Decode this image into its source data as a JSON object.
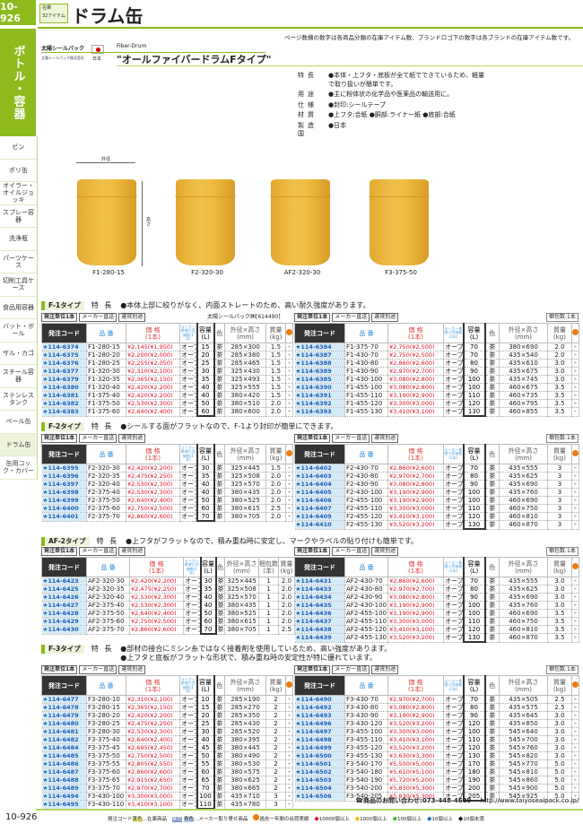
{
  "header": {
    "page_number": "10-926",
    "stock_label": "在庫",
    "stock_count": "32アイテム",
    "title": "ドラム缶",
    "note": "ページ数横の数字は各商品分類の在庫アイテム数、ブランドロゴ下の数字は各ブランドの在庫アイテム数です。"
  },
  "sidebar": {
    "category": "ボトル・容器",
    "items": [
      "ビン",
      "ポリ缶",
      "オイラー・オイルジョッキ",
      "スプレー容器",
      "洗浄瓶",
      "パーツケース",
      "切削工具ケース",
      "食品用容器",
      "バット・ボール",
      "ザル・カゴ",
      "スチール容器",
      "ステンレスタンク",
      "ペール缶",
      "ドラム缶",
      "缶用コック・カバー"
    ],
    "active": "ドラム缶"
  },
  "brand": {
    "name": "太陽シールパック",
    "company": "太陽シールパック株式会社",
    "country": "日本",
    "en_name": "Fiber-Drum",
    "product_name": "\"オールファイバードラムFタイプ\""
  },
  "spec": [
    {
      "k": "特長",
      "v": "●本体・上フタ・底板が全て紙でできているため、軽量で取り扱いが簡単です。"
    },
    {
      "k": "用途",
      "v": "●主に粉体状の化学品や医薬品の輸送用に。"
    },
    {
      "k": "仕様",
      "v": "●封印:シールテープ"
    },
    {
      "k": "材質",
      "v": "●上フタ:合紙 ●胴部:ライナー紙 ●底部:合紙"
    },
    {
      "k": "製造国",
      "v": "●日本"
    }
  ],
  "images": {
    "labels": [
      "F1-280-15",
      "F2-320-30",
      "AF2-320-30",
      "F3-375-50"
    ],
    "dim_width": "外径",
    "dim_height": "高さ"
  },
  "table_headers": {
    "code": "発注コード",
    "part": "品 番",
    "price": "価 格\n(1本)",
    "maker": "メーカー希望小売価格(1本)",
    "capacity": "容量\n(L)",
    "color": "色",
    "size": "外径×高さ\n(mm)",
    "pack": "梱包数\n(本)",
    "weight": "質量\n(kg)"
  },
  "unit_bar": {
    "unit": "発注単位1本",
    "direct": "メーカー直送",
    "shipping": "運賃別途"
  },
  "sections": [
    {
      "tag": "F-1タイプ",
      "label": "特 長",
      "features": [
        "●本体上部に絞りがなく、内面ストレートのため、高い耐久強度があります。"
      ],
      "left_note": "太陽シールパック㈱[614490]",
      "right_note": "梱包数:1本",
      "has_pack": false,
      "left": [
        [
          "★114-6374",
          "F1-280-15",
          "¥2,145(¥1,950)",
          "オープン",
          "15",
          "茶",
          "285×300",
          "1.5",
          "-"
        ],
        [
          "★114-6375",
          "F1-280-20",
          "¥2,200(¥2,000)",
          "オープン",
          "20",
          "茶",
          "285×380",
          "1.5",
          "-"
        ],
        [
          "★114-6376",
          "F1-280-25",
          "¥2,255(¥2,050)",
          "オープン",
          "25",
          "茶",
          "285×465",
          "1.5",
          "-"
        ],
        [
          "★114-6377",
          "F1-320-30",
          "¥2,310(¥2,100)",
          "オープン",
          "30",
          "茶",
          "325×430",
          "1.5",
          "-"
        ],
        [
          "★114-6379",
          "F1-320-35",
          "¥2,365(¥2,150)",
          "オープン",
          "35",
          "茶",
          "325×493",
          "1.5",
          "-"
        ],
        [
          "★114-6380",
          "F1-320-40",
          "¥2,420(¥2,200)",
          "オープン",
          "40",
          "茶",
          "325×555",
          "1.5",
          "-"
        ],
        [
          "★114-6381",
          "F1-375-40",
          "¥2,420(¥2,200)",
          "オープン",
          "40",
          "茶",
          "380×420",
          "1.5",
          "-"
        ],
        [
          "★114-6382",
          "F1-375-50",
          "¥2,530(¥2,300)",
          "オープン",
          "50",
          "茶",
          "380×510",
          "2.0",
          "-"
        ],
        [
          "★114-6383",
          "F1-375-60",
          "¥2,640(¥2,400)",
          "オープン",
          "60",
          "茶",
          "380×600",
          "2.0",
          "-"
        ]
      ],
      "right": [
        [
          "★114-6384",
          "F1-375-70",
          "¥2,750(¥2,500)",
          "オープン",
          "70",
          "茶",
          "380×690",
          "2.0",
          "-"
        ],
        [
          "★114-6387",
          "F1-430-70",
          "¥2,750(¥2,500)",
          "オープン",
          "70",
          "茶",
          "435×540",
          "2.0",
          "-"
        ],
        [
          "★114-6388",
          "F1-430-80",
          "¥2,860(¥2,600)",
          "オープン",
          "80",
          "茶",
          "435×610",
          "3.0",
          "-"
        ],
        [
          "★114-6389",
          "F1-430-90",
          "¥2,970(¥2,700)",
          "オープン",
          "90",
          "茶",
          "435×675",
          "3.0",
          "-"
        ],
        [
          "★114-6385",
          "F1-430-100",
          "¥3,080(¥2,800)",
          "オープン",
          "100",
          "茶",
          "435×745",
          "3.0",
          "-"
        ],
        [
          "★114-6390",
          "F1-455-100",
          "¥3,080(¥2,800)",
          "オープン",
          "100",
          "茶",
          "460×675",
          "3.5",
          "-"
        ],
        [
          "★114-6391",
          "F1-455-110",
          "¥3,190(¥2,900)",
          "オープン",
          "110",
          "茶",
          "460×735",
          "3.5",
          "-"
        ],
        [
          "★114-6392",
          "F1-455-120",
          "¥3,300(¥3,000)",
          "オープン",
          "120",
          "茶",
          "460×795",
          "3.5",
          "-"
        ],
        [
          "★114-6393",
          "F1-455-130",
          "¥3,410(¥3,100)",
          "オープン",
          "130",
          "茶",
          "460×855",
          "3.5",
          "-"
        ]
      ]
    },
    {
      "tag": "F-2タイプ",
      "label": "特 長",
      "features": [
        "●シールする面がフラットなので、F-1より封印が簡単にできます。"
      ],
      "left_note": "",
      "right_note": "梱包数:1本",
      "has_pack": false,
      "left": [
        [
          "★114-6395",
          "F2-320-30",
          "¥2,420(¥2,200)",
          "オープン",
          "30",
          "茶",
          "325×445",
          "1.5",
          "-"
        ],
        [
          "★114-6396",
          "F2-320-35",
          "¥2,475(¥2,250)",
          "オープン",
          "35",
          "茶",
          "325×508",
          "2.0",
          "-"
        ],
        [
          "★114-6397",
          "F2-320-40",
          "¥2,530(¥2,300)",
          "オープン",
          "40",
          "茶",
          "325×570",
          "2.0",
          "-"
        ],
        [
          "★114-6398",
          "F2-375-40",
          "¥2,530(¥2,300)",
          "オープン",
          "40",
          "茶",
          "380×435",
          "2.0",
          "-"
        ],
        [
          "★114-6399",
          "F2-375-50",
          "¥2,640(¥2,400)",
          "オープン",
          "50",
          "茶",
          "380×525",
          "2.0",
          "-"
        ],
        [
          "★114-6400",
          "F2-375-60",
          "¥2,750(¥2,500)",
          "オープン",
          "60",
          "茶",
          "380×615",
          "2.5",
          "-"
        ],
        [
          "★114-6401",
          "F2-375-70",
          "¥2,860(¥2,600)",
          "オープン",
          "70",
          "茶",
          "380×705",
          "2.0",
          "-"
        ]
      ],
      "right": [
        [
          "★114-6402",
          "F2-430-70",
          "¥2,860(¥2,600)",
          "オープン",
          "70",
          "茶",
          "435×555",
          "3",
          "-"
        ],
        [
          "★114-6403",
          "F2-430-80",
          "¥2,970(¥2,700)",
          "オープン",
          "80",
          "茶",
          "435×625",
          "3",
          "-"
        ],
        [
          "★114-6404",
          "F2-430-90",
          "¥3,080(¥2,800)",
          "オープン",
          "90",
          "茶",
          "435×690",
          "3",
          "-"
        ],
        [
          "★114-6405",
          "F2-430-100",
          "¥3,190(¥2,900)",
          "オープン",
          "100",
          "茶",
          "435×760",
          "3",
          "-"
        ],
        [
          "★114-6406",
          "F2-455-100",
          "¥3,190(¥2,900)",
          "オープン",
          "100",
          "茶",
          "460×690",
          "3",
          "-"
        ],
        [
          "★114-6407",
          "F2-455-110",
          "¥3,300(¥3,000)",
          "オープン",
          "110",
          "茶",
          "460×750",
          "3",
          "-"
        ],
        [
          "★114-6409",
          "F2-455-120",
          "¥3,410(¥3,100)",
          "オープン",
          "120",
          "茶",
          "460×810",
          "3",
          "-"
        ],
        [
          "★114-6410",
          "F2-455-130",
          "¥3,520(¥3,200)",
          "オープン",
          "130",
          "茶",
          "460×870",
          "3",
          "-"
        ]
      ]
    },
    {
      "tag": "AF-2タイプ",
      "label": "特 長",
      "features": [
        "●上フタがフラットなので、積み重ね時に安定し、マークやラベルの貼り付けも簡単です。"
      ],
      "left_note": "",
      "right_note": "梱包数:1本",
      "has_pack": true,
      "left": [
        [
          "★114-6423",
          "AF2-320-30",
          "¥2,420(¥2,200)",
          "オープン",
          "30",
          "茶",
          "325×445",
          "1",
          "2.0",
          "-"
        ],
        [
          "★114-6425",
          "AF2-320-35",
          "¥2,475(¥2,250)",
          "オープン",
          "35",
          "茶",
          "325×508",
          "1",
          "2.0",
          "-"
        ],
        [
          "★114-6426",
          "AF2-320-40",
          "¥2,530(¥2,300)",
          "オープン",
          "40",
          "茶",
          "325×570",
          "1",
          "2.0",
          "-"
        ],
        [
          "★114-6427",
          "AF2-375-40",
          "¥2,530(¥2,300)",
          "オープン",
          "40",
          "茶",
          "380×435",
          "1",
          "2.0",
          "-"
        ],
        [
          "★114-6428",
          "AF2-375-50",
          "¥2,640(¥2,400)",
          "オープン",
          "50",
          "茶",
          "380×525",
          "1",
          "2.0",
          "-"
        ],
        [
          "★114-6429",
          "AF2-375-60",
          "¥2,750(¥2,500)",
          "オープン",
          "60",
          "茶",
          "380×615",
          "1",
          "2.0",
          "-"
        ],
        [
          "★114-6430",
          "AF2-375-70",
          "¥2,860(¥2,600)",
          "オープン",
          "70",
          "茶",
          "380×705",
          "1",
          "2.5",
          "-"
        ]
      ],
      "right": [
        [
          "★114-6431",
          "AF2-430-70",
          "¥2,860(¥2,600)",
          "オープン",
          "70",
          "茶",
          "435×555",
          "3.0",
          "-"
        ],
        [
          "★114-6433",
          "AF2-430-80",
          "¥2,970(¥2,700)",
          "オープン",
          "80",
          "茶",
          "435×625",
          "3.0",
          "-"
        ],
        [
          "★114-6434",
          "AF2-430-90",
          "¥3,080(¥2,800)",
          "オープン",
          "90",
          "茶",
          "435×690",
          "3.0",
          "-"
        ],
        [
          "★114-6435",
          "AF2-430-100",
          "¥3,190(¥2,900)",
          "オープン",
          "100",
          "茶",
          "435×760",
          "3.0",
          "-"
        ],
        [
          "★114-6436",
          "AF2-455-100",
          "¥3,190(¥2,900)",
          "オープン",
          "100",
          "茶",
          "460×690",
          "3.5",
          "-"
        ],
        [
          "★114-6437",
          "AF2-455-110",
          "¥3,300(¥3,000)",
          "オープン",
          "110",
          "茶",
          "460×750",
          "3.5",
          "-"
        ],
        [
          "★114-6438",
          "AF2-455-120",
          "¥3,410(¥3,100)",
          "オープン",
          "120",
          "茶",
          "460×810",
          "3.5",
          "-"
        ],
        [
          "★114-6439",
          "AF2-455-130",
          "¥3,520(¥3,200)",
          "オープン",
          "130",
          "茶",
          "460×870",
          "3.5",
          "-"
        ]
      ]
    },
    {
      "tag": "F-3タイプ",
      "label": "特 長",
      "features": [
        "●部材の接合にミシン糸ではなく接着剤を使用しているため、高い強度があります。",
        "●上フタと底板がフラットな形状で、積み重ね時の安定性が特に優れています。"
      ],
      "left_note": "",
      "right_note": "梱包数:1本",
      "has_pack": false,
      "left": [
        [
          "★114-6477",
          "F3-280-10",
          "¥2,310(¥2,100)",
          "オープン",
          "10",
          "茶",
          "285×190",
          "2",
          "-"
        ],
        [
          "★114-6478",
          "F3-280-15",
          "¥2,365(¥2,150)",
          "オープン",
          "15",
          "茶",
          "285×270",
          "2",
          "-"
        ],
        [
          "★114-6479",
          "F3-280-20",
          "¥2,420(¥2,200)",
          "オープン",
          "20",
          "茶",
          "285×350",
          "2",
          "-"
        ],
        [
          "★114-6480",
          "F3-280-25",
          "¥2,475(¥2,250)",
          "オープン",
          "25",
          "茶",
          "285×430",
          "2",
          "-"
        ],
        [
          "★114-6481",
          "F3-280-30",
          "¥2,530(¥2,300)",
          "オープン",
          "30",
          "茶",
          "285×520",
          "2",
          "-"
        ],
        [
          "★114-6482",
          "F3-375-40",
          "¥2,640(¥2,400)",
          "オープン",
          "40",
          "茶",
          "380×395",
          "2",
          "-"
        ],
        [
          "★114-6484",
          "F3-375-45",
          "¥2,695(¥2,450)",
          "オープン",
          "45",
          "茶",
          "380×445",
          "2",
          "-"
        ],
        [
          "★114-6485",
          "F3-375-50",
          "¥2,750(¥2,500)",
          "オープン",
          "50",
          "茶",
          "380×490",
          "2",
          "-"
        ],
        [
          "★114-6486",
          "F3-375-55",
          "¥2,805(¥2,550)",
          "オープン",
          "55",
          "茶",
          "380×530",
          "2",
          "-"
        ],
        [
          "★114-6487",
          "F3-375-60",
          "¥2,860(¥2,600)",
          "オープン",
          "60",
          "茶",
          "380×575",
          "2",
          "-"
        ],
        [
          "★114-6488",
          "F3-375-65",
          "¥2,915(¥2,650)",
          "オープン",
          "65",
          "茶",
          "380×625",
          "2",
          "-"
        ],
        [
          "★114-6489",
          "F3-375-70",
          "¥2,970(¥2,700)",
          "オープン",
          "70",
          "茶",
          "380×665",
          "2",
          "-"
        ],
        [
          "★114-6494",
          "F3-430-100",
          "¥3,300(¥3,000)",
          "オープン",
          "100",
          "茶",
          "435×710",
          "3",
          "-"
        ],
        [
          "★114-6495",
          "F3-430-110",
          "¥3,410(¥3,100)",
          "オープン",
          "110",
          "茶",
          "435×780",
          "3",
          "-"
        ]
      ],
      "right": [
        [
          "★114-6490",
          "F3-430-70",
          "¥2,970(¥2,700)",
          "オープン",
          "70",
          "茶",
          "435×505",
          "2.5",
          "-"
        ],
        [
          "★114-6492",
          "F3-430-80",
          "¥3,080(¥2,800)",
          "オープン",
          "80",
          "茶",
          "435×575",
          "2.5",
          "-"
        ],
        [
          "★114-6493",
          "F3-430-90",
          "¥3,190(¥2,900)",
          "オープン",
          "90",
          "茶",
          "435×645",
          "3.0",
          "-"
        ],
        [
          "★114-6496",
          "F3-430-120",
          "¥3,520(¥3,200)",
          "オープン",
          "120",
          "茶",
          "435×850",
          "3.0",
          "-"
        ],
        [
          "★114-6497",
          "F3-455-100",
          "¥3,300(¥3,000)",
          "オープン",
          "100",
          "茶",
          "545×640",
          "3.0",
          "-"
        ],
        [
          "★114-6498",
          "F3-455-110",
          "¥3,410(¥3,100)",
          "オープン",
          "110",
          "茶",
          "545×700",
          "3.0",
          "-"
        ],
        [
          "★114-6499",
          "F3-455-120",
          "¥3,520(¥3,200)",
          "オープン",
          "120",
          "茶",
          "545×760",
          "3.0",
          "-"
        ],
        [
          "★114-6500",
          "F3-455-130",
          "¥3,630(¥3,300)",
          "オープン",
          "130",
          "茶",
          "545×820",
          "3.0",
          "-"
        ],
        [
          "★114-6501",
          "F3-540-170",
          "¥5,500(¥5,000)",
          "オープン",
          "170",
          "茶",
          "545×770",
          "5.0",
          "-"
        ],
        [
          "★114-6502",
          "F3-540-180",
          "¥5,610(¥5,100)",
          "オープン",
          "180",
          "茶",
          "545×810",
          "5.0",
          "-"
        ],
        [
          "★114-6503",
          "F3-540-190",
          "¥5,720(¥5,200)",
          "オープン",
          "190",
          "茶",
          "545×860",
          "5.0",
          "-"
        ],
        [
          "★114-6504",
          "F3-540-200",
          "¥5,830(¥5,300)",
          "オープン",
          "200",
          "茶",
          "545×900",
          "5.0",
          "-"
        ],
        [
          "★114-6506",
          "F3-540-205",
          "¥5,830(¥5,300)",
          "オープン",
          "205",
          "茶",
          "545×925",
          "5.0",
          "-"
        ]
      ]
    }
  ],
  "contact": {
    "phone": "☎商品のお問い合わせ:073-448-4689",
    "url": "http://www.taiyosealpack.co.jp/"
  },
  "footer": {
    "page_number": "10-926",
    "code_label": "発注コード",
    "yellow": "黄色",
    "stock_item": "…在庫商品",
    "purple": "紫色",
    "blue": "青色",
    "maker_item": "…メーカー取り寄せ商品",
    "shipments": "過去一年間の出荷実績",
    "levels": [
      {
        "label": "10000個以上",
        "color": "#e0102a"
      },
      {
        "label": "1000個以上",
        "color": "#f4b400"
      },
      {
        "label": "100個以上",
        "color": "#4caf3a"
      },
      {
        "label": "10個以上",
        "color": "#1a6fc4"
      },
      {
        "label": "10個未満",
        "color": "#111111"
      }
    ]
  }
}
